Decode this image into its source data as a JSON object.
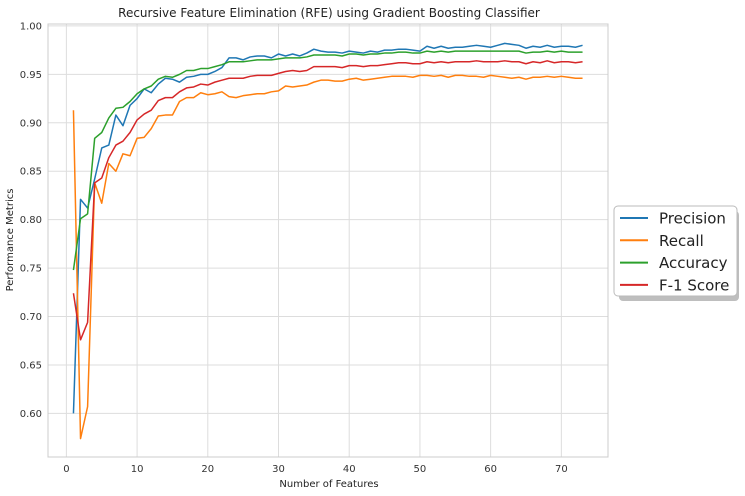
{
  "chart_data": {
    "type": "line",
    "title": "Recursive Feature Elimination (RFE) using Gradient Boosting Classifier",
    "xlabel": "Number of Features",
    "ylabel": "Performance Metrics",
    "xlim": [
      -2.6,
      76.6
    ],
    "ylim": [
      0.555,
      1.002
    ],
    "xticks": [
      0,
      10,
      20,
      30,
      40,
      50,
      60,
      70
    ],
    "yticks": [
      0.6,
      0.65,
      0.7,
      0.75,
      0.8,
      0.85,
      0.9,
      0.95,
      1.0
    ],
    "ytick_labels": [
      "0.60",
      "0.65",
      "0.70",
      "0.75",
      "0.80",
      "0.85",
      "0.90",
      "0.95",
      "1.00"
    ],
    "grid": true,
    "legend_position": "center-right-outside",
    "x": [
      1,
      2,
      3,
      4,
      5,
      6,
      7,
      8,
      9,
      10,
      11,
      12,
      13,
      14,
      15,
      16,
      17,
      18,
      19,
      20,
      21,
      22,
      23,
      24,
      25,
      26,
      27,
      28,
      29,
      30,
      31,
      32,
      33,
      34,
      35,
      36,
      37,
      38,
      39,
      40,
      41,
      42,
      43,
      44,
      45,
      46,
      47,
      48,
      49,
      50,
      51,
      52,
      53,
      54,
      55,
      56,
      57,
      58,
      59,
      60,
      61,
      62,
      63,
      64,
      65,
      66,
      67,
      68,
      69,
      70,
      71,
      72,
      73
    ],
    "series": [
      {
        "name": "Precision",
        "color": "#1f77b4",
        "values": [
          0.6,
          0.821,
          0.812,
          0.842,
          0.874,
          0.877,
          0.908,
          0.897,
          0.918,
          0.925,
          0.935,
          0.931,
          0.94,
          0.946,
          0.945,
          0.942,
          0.947,
          0.948,
          0.95,
          0.95,
          0.953,
          0.957,
          0.967,
          0.967,
          0.965,
          0.968,
          0.969,
          0.969,
          0.967,
          0.971,
          0.969,
          0.971,
          0.969,
          0.972,
          0.976,
          0.974,
          0.973,
          0.973,
          0.972,
          0.974,
          0.973,
          0.972,
          0.974,
          0.973,
          0.975,
          0.975,
          0.976,
          0.976,
          0.975,
          0.974,
          0.979,
          0.977,
          0.979,
          0.977,
          0.978,
          0.978,
          0.979,
          0.98,
          0.979,
          0.978,
          0.98,
          0.982,
          0.981,
          0.98,
          0.977,
          0.979,
          0.978,
          0.98,
          0.978,
          0.979,
          0.979,
          0.978,
          0.98
        ]
      },
      {
        "name": "Recall",
        "color": "#ff7f0e",
        "values": [
          0.913,
          0.574,
          0.607,
          0.838,
          0.817,
          0.858,
          0.85,
          0.868,
          0.866,
          0.884,
          0.885,
          0.894,
          0.907,
          0.908,
          0.908,
          0.922,
          0.926,
          0.926,
          0.931,
          0.929,
          0.93,
          0.932,
          0.927,
          0.926,
          0.928,
          0.929,
          0.93,
          0.93,
          0.932,
          0.933,
          0.938,
          0.937,
          0.938,
          0.939,
          0.942,
          0.944,
          0.944,
          0.943,
          0.943,
          0.945,
          0.946,
          0.944,
          0.945,
          0.946,
          0.947,
          0.948,
          0.948,
          0.948,
          0.947,
          0.949,
          0.949,
          0.948,
          0.949,
          0.947,
          0.949,
          0.949,
          0.948,
          0.948,
          0.947,
          0.949,
          0.948,
          0.947,
          0.946,
          0.947,
          0.945,
          0.947,
          0.947,
          0.948,
          0.947,
          0.948,
          0.947,
          0.946,
          0.946
        ]
      },
      {
        "name": "Accuracy",
        "color": "#2ca02c",
        "values": [
          0.748,
          0.801,
          0.806,
          0.884,
          0.89,
          0.905,
          0.915,
          0.916,
          0.922,
          0.93,
          0.935,
          0.938,
          0.945,
          0.948,
          0.947,
          0.95,
          0.954,
          0.954,
          0.956,
          0.956,
          0.958,
          0.96,
          0.963,
          0.963,
          0.963,
          0.964,
          0.965,
          0.965,
          0.965,
          0.966,
          0.967,
          0.967,
          0.967,
          0.968,
          0.97,
          0.97,
          0.97,
          0.97,
          0.969,
          0.971,
          0.971,
          0.97,
          0.971,
          0.971,
          0.972,
          0.972,
          0.973,
          0.973,
          0.972,
          0.972,
          0.974,
          0.973,
          0.974,
          0.973,
          0.974,
          0.974,
          0.974,
          0.974,
          0.974,
          0.974,
          0.974,
          0.974,
          0.974,
          0.974,
          0.972,
          0.973,
          0.973,
          0.974,
          0.973,
          0.974,
          0.973,
          0.973,
          0.973
        ]
      },
      {
        "name": "F-1 Score",
        "color": "#d62728",
        "values": [
          0.724,
          0.676,
          0.694,
          0.838,
          0.843,
          0.864,
          0.877,
          0.881,
          0.89,
          0.903,
          0.909,
          0.913,
          0.923,
          0.926,
          0.926,
          0.932,
          0.936,
          0.937,
          0.94,
          0.939,
          0.942,
          0.944,
          0.946,
          0.946,
          0.946,
          0.948,
          0.949,
          0.949,
          0.949,
          0.951,
          0.953,
          0.954,
          0.953,
          0.954,
          0.958,
          0.958,
          0.958,
          0.958,
          0.957,
          0.959,
          0.959,
          0.958,
          0.959,
          0.959,
          0.96,
          0.961,
          0.962,
          0.962,
          0.961,
          0.961,
          0.963,
          0.962,
          0.963,
          0.962,
          0.963,
          0.963,
          0.963,
          0.964,
          0.963,
          0.963,
          0.963,
          0.964,
          0.963,
          0.963,
          0.961,
          0.963,
          0.962,
          0.964,
          0.962,
          0.963,
          0.963,
          0.962,
          0.963
        ]
      }
    ]
  }
}
